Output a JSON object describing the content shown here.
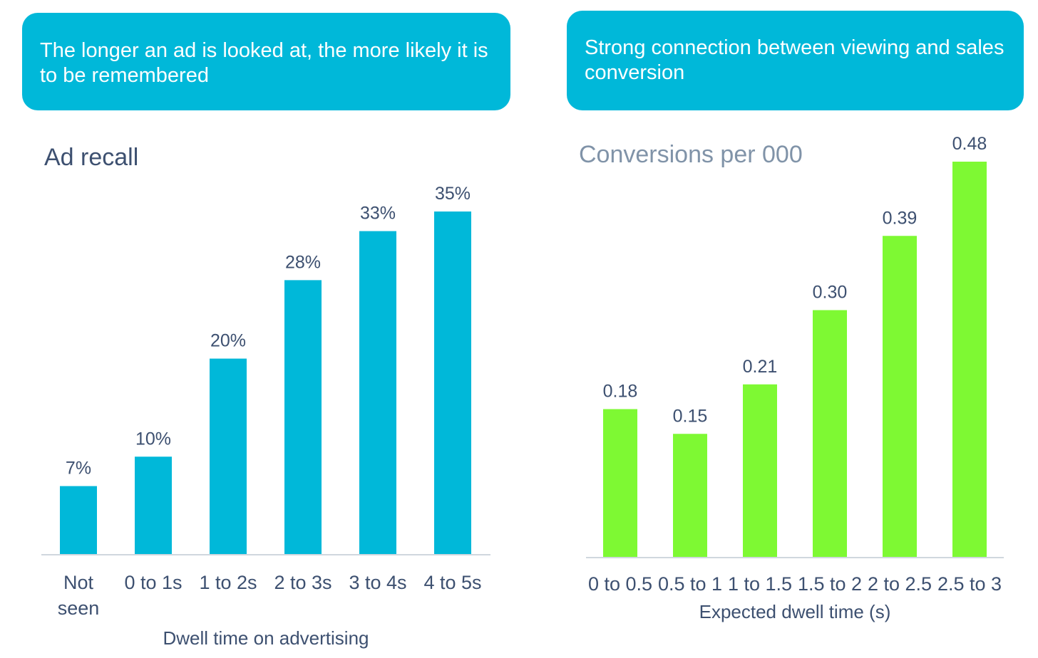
{
  "headlines": {
    "left": "The longer an ad is looked at, the more likely it is to be remembered",
    "right": "Strong connection between viewing and sales conversion"
  },
  "colors": {
    "banner": "#00b8d9",
    "left_bars": "#00b8d9",
    "right_bars": "#7ef933",
    "text": "#3d5070",
    "title_right": "#8093a8",
    "axis": "#d0d7de"
  },
  "chart_data": [
    {
      "type": "bar",
      "title": "Ad recall",
      "categories": [
        "Not seen",
        "0 to 1s",
        "1 to 2s",
        "2 to 3s",
        "3 to 4s",
        "4 to 5s"
      ],
      "values": [
        7,
        10,
        20,
        28,
        33,
        35
      ],
      "value_labels": [
        "7%",
        "10%",
        "20%",
        "28%",
        "33%",
        "35%"
      ],
      "xlabel": "Dwell time on advertising",
      "ylabel": "",
      "ylim": [
        0,
        35
      ],
      "grid": false,
      "color": "#00b8d9"
    },
    {
      "type": "bar",
      "title": "Conversions per 000",
      "categories": [
        "0 to 0.5",
        "0.5 to 1",
        "1 to 1.5",
        "1.5 to 2",
        "2 to 2.5",
        "2.5 to 3"
      ],
      "values": [
        0.18,
        0.15,
        0.21,
        0.3,
        0.39,
        0.48
      ],
      "value_labels": [
        "0.18",
        "0.15",
        "0.21",
        "0.30",
        "0.39",
        "0.48"
      ],
      "xlabel": "Expected dwell time (s)",
      "ylabel": "",
      "ylim": [
        0,
        0.48
      ],
      "grid": false,
      "color": "#7ef933"
    }
  ]
}
